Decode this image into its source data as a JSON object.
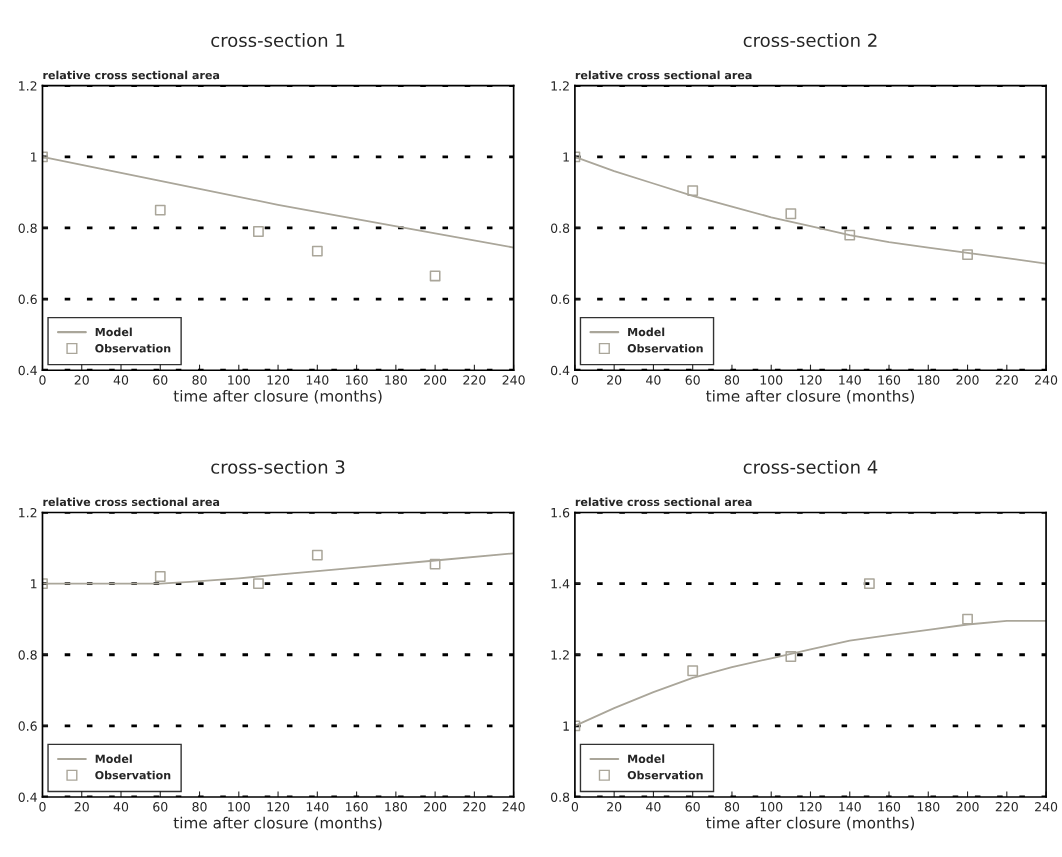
{
  "chart_data": [
    {
      "type": "line",
      "title": "cross-section 1",
      "xlabel": "time after closure (months)",
      "ylabel": "relative cross sectional area",
      "xlim": [
        0,
        240
      ],
      "xticks": [
        0,
        20,
        40,
        60,
        80,
        100,
        120,
        140,
        160,
        180,
        200,
        220,
        240
      ],
      "ylim": [
        0.4,
        1.2
      ],
      "yticks": [
        0.4,
        0.6,
        0.8,
        1,
        1.2
      ],
      "grid": "y",
      "legend": "bottom left",
      "series": [
        {
          "name": "Model",
          "color": "#aaa69a",
          "marker": "none",
          "x": [
            0,
            40,
            80,
            120,
            160,
            200,
            240
          ],
          "values": [
            1.0,
            0.955,
            0.91,
            0.865,
            0.825,
            0.785,
            0.745
          ]
        },
        {
          "name": "Observation",
          "type": "scatter",
          "color": "#aaa69a",
          "marker": "square",
          "x": [
            0,
            60,
            110,
            140,
            200
          ],
          "values": [
            1.0,
            0.85,
            0.79,
            0.735,
            0.665
          ]
        }
      ]
    },
    {
      "type": "line",
      "title": "cross-section 2",
      "xlabel": "time after closure (months)",
      "ylabel": "relative cross sectional area",
      "xlim": [
        0,
        240
      ],
      "xticks": [
        0,
        20,
        40,
        60,
        80,
        100,
        120,
        140,
        160,
        180,
        200,
        220,
        240
      ],
      "ylim": [
        0.4,
        1.2
      ],
      "yticks": [
        0.4,
        0.6,
        0.8,
        1,
        1.2
      ],
      "grid": "y",
      "legend": "bottom left",
      "series": [
        {
          "name": "Model",
          "color": "#aaa69a",
          "marker": "none",
          "x": [
            0,
            20,
            40,
            60,
            80,
            100,
            120,
            140,
            160,
            180,
            200,
            220,
            240
          ],
          "values": [
            1.0,
            0.96,
            0.925,
            0.89,
            0.86,
            0.83,
            0.805,
            0.78,
            0.76,
            0.745,
            0.73,
            0.715,
            0.7
          ]
        },
        {
          "name": "Observation",
          "type": "scatter",
          "color": "#aaa69a",
          "marker": "square",
          "x": [
            0,
            60,
            110,
            140,
            200
          ],
          "values": [
            1.0,
            0.905,
            0.84,
            0.78,
            0.725
          ]
        }
      ]
    },
    {
      "type": "line",
      "title": "cross-section 3",
      "xlabel": "time after closure (months)",
      "ylabel": "relative cross sectional area",
      "xlim": [
        0,
        240
      ],
      "xticks": [
        0,
        20,
        40,
        60,
        80,
        100,
        120,
        140,
        160,
        180,
        200,
        220,
        240
      ],
      "ylim": [
        0.4,
        1.2
      ],
      "yticks": [
        0.4,
        0.6,
        0.8,
        1,
        1.2
      ],
      "grid": "y",
      "legend": "bottom left",
      "series": [
        {
          "name": "Model",
          "color": "#aaa69a",
          "marker": "none",
          "x": [
            0,
            40,
            60,
            75,
            100,
            120,
            140,
            160,
            200,
            240
          ],
          "values": [
            1.0,
            1.0,
            1.0,
            1.005,
            1.015,
            1.025,
            1.035,
            1.045,
            1.065,
            1.085
          ]
        },
        {
          "name": "Observation",
          "type": "scatter",
          "color": "#aaa69a",
          "marker": "square",
          "x": [
            0,
            60,
            110,
            140,
            200
          ],
          "values": [
            1.0,
            1.02,
            1.0,
            1.08,
            1.055
          ]
        }
      ]
    },
    {
      "type": "line",
      "title": "cross-section 4",
      "xlabel": "time after closure (months)",
      "ylabel": "relative cross sectional area",
      "xlim": [
        0,
        240
      ],
      "xticks": [
        0,
        20,
        40,
        60,
        80,
        100,
        120,
        140,
        160,
        180,
        200,
        220,
        240
      ],
      "ylim": [
        0.8,
        1.6
      ],
      "yticks": [
        0.8,
        1,
        1.2,
        1.4,
        1.6
      ],
      "grid": "y",
      "legend": "bottom left",
      "series": [
        {
          "name": "Model",
          "color": "#aaa69a",
          "marker": "none",
          "x": [
            0,
            20,
            40,
            60,
            80,
            100,
            120,
            140,
            160,
            180,
            200,
            220,
            240
          ],
          "values": [
            1.0,
            1.05,
            1.095,
            1.135,
            1.165,
            1.19,
            1.215,
            1.24,
            1.255,
            1.27,
            1.285,
            1.295,
            1.295
          ]
        },
        {
          "name": "Observation",
          "type": "scatter",
          "color": "#aaa69a",
          "marker": "square",
          "x": [
            0,
            60,
            110,
            150,
            200
          ],
          "values": [
            1.0,
            1.155,
            1.195,
            1.4,
            1.3
          ]
        }
      ]
    }
  ]
}
